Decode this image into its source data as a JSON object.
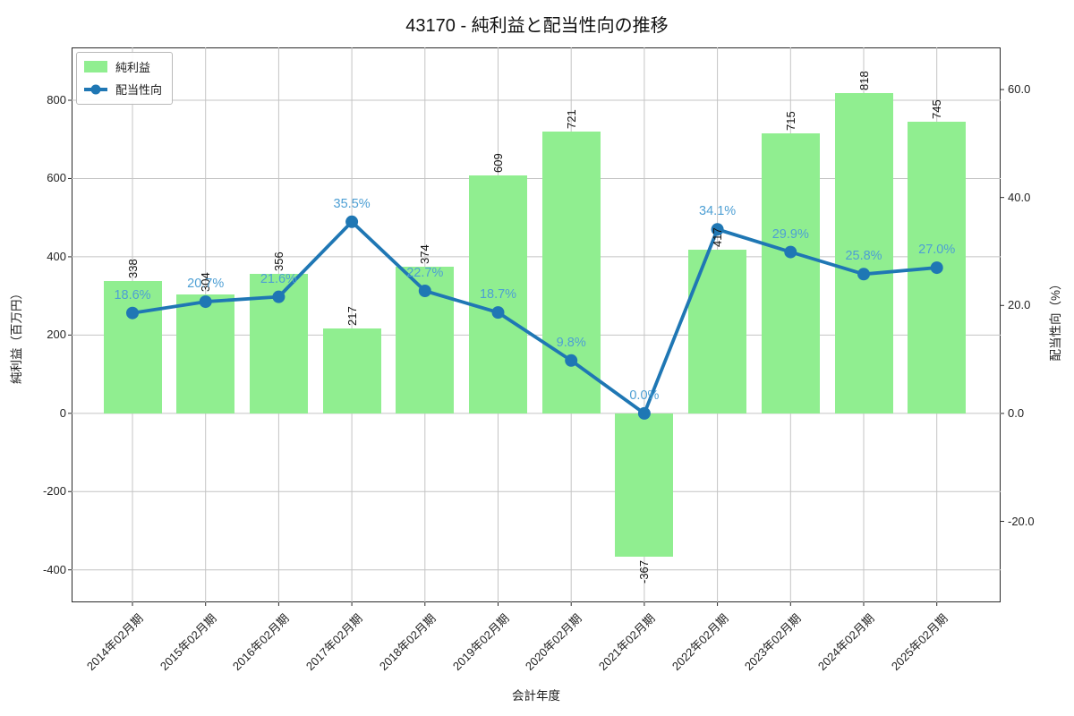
{
  "chart_data": {
    "type": "bar-line-combo",
    "title": "43170 - 純利益と配当性向の推移",
    "xlabel": "会計年度",
    "ylabel_left": "純利益（百万円）",
    "ylabel_right": "配当性向（%）",
    "categories": [
      "2014年02月期",
      "2015年02月期",
      "2016年02月期",
      "2017年02月期",
      "2018年02月期",
      "2019年02月期",
      "2020年02月期",
      "2021年02月期",
      "2022年02月期",
      "2023年02月期",
      "2024年02月期",
      "2025年02月期"
    ],
    "series": [
      {
        "name": "純利益",
        "kind": "bar",
        "axis": "left",
        "values": [
          338,
          304,
          356,
          217,
          374,
          609,
          721,
          -367,
          417,
          715,
          818,
          745
        ],
        "labels": [
          "338",
          "304",
          "356",
          "217",
          "374",
          "609",
          "721",
          "-367",
          "417",
          "715",
          "818",
          "745"
        ],
        "color": "#90ee90"
      },
      {
        "name": "配当性向",
        "kind": "line",
        "axis": "right",
        "values": [
          18.6,
          20.7,
          21.6,
          35.5,
          22.7,
          18.7,
          9.8,
          0.0,
          34.1,
          29.9,
          25.8,
          27.0
        ],
        "labels": [
          "18.6%",
          "20.7%",
          "21.6%",
          "35.5%",
          "22.7%",
          "18.7%",
          "9.8%",
          "0.0%",
          "34.1%",
          "29.9%",
          "25.8%",
          "27.0%"
        ],
        "color": "#1f77b4",
        "label_color": "#4d9fd4"
      }
    ],
    "y_left": {
      "ticks": [
        800,
        600,
        400,
        200,
        0,
        -200,
        -400
      ],
      "tick_labels": [
        "800",
        "600",
        "400",
        "200",
        "0",
        "-200",
        "-400"
      ],
      "lim": [
        -483,
        935
      ]
    },
    "y_right": {
      "ticks": [
        60,
        40,
        20,
        0,
        -20
      ],
      "tick_labels": [
        "60.0",
        "40.0",
        "20.0",
        "0.0",
        "-20.0"
      ],
      "lim": [
        -35,
        67.8
      ]
    },
    "grid": true,
    "legend": {
      "position": "upper-left",
      "items": [
        "純利益",
        "配当性向"
      ]
    },
    "colors": {
      "grid": "#c4c4c4",
      "spine": "#2a2a2a",
      "tick_text": "#222222",
      "bar_label_text": "#111111"
    }
  }
}
